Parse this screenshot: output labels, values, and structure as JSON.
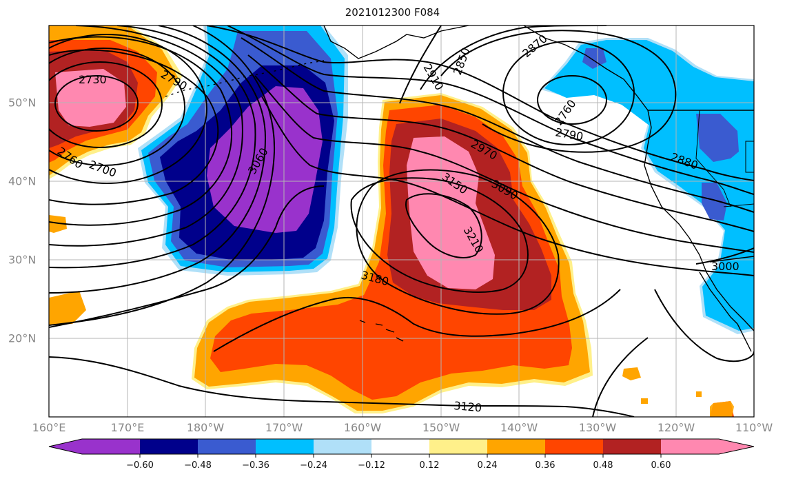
{
  "title": "2021012300 F084",
  "map": {
    "lon_labels": [
      "160°E",
      "170°E",
      "180°W",
      "170°W",
      "160°W",
      "150°W",
      "140°W",
      "130°W",
      "120°W",
      "110°W"
    ],
    "lat_labels": [
      "50°N",
      "40°N",
      "30°N",
      "20°N"
    ],
    "contour_labels": [
      "2730",
      "2790",
      "2760",
      "2700",
      "3060",
      "2910",
      "2850",
      "2870",
      "2760",
      "2790",
      "2970",
      "3150",
      "3090",
      "3210",
      "2880",
      "3180",
      "3000",
      "3120"
    ]
  },
  "colorbar": {
    "tick_labels": [
      "−0.60",
      "−0.48",
      "−0.36",
      "−0.24",
      "−0.12",
      "0.12",
      "0.24",
      "0.36",
      "0.48",
      "0.60"
    ],
    "colors": [
      "#9932cc",
      "#00008b",
      "#3a5bd0",
      "#00bfff",
      "#b0e0f8",
      "#ffffff",
      "#fff08a",
      "#ffa500",
      "#ff4500",
      "#b22222",
      "#ff88b0"
    ]
  }
}
